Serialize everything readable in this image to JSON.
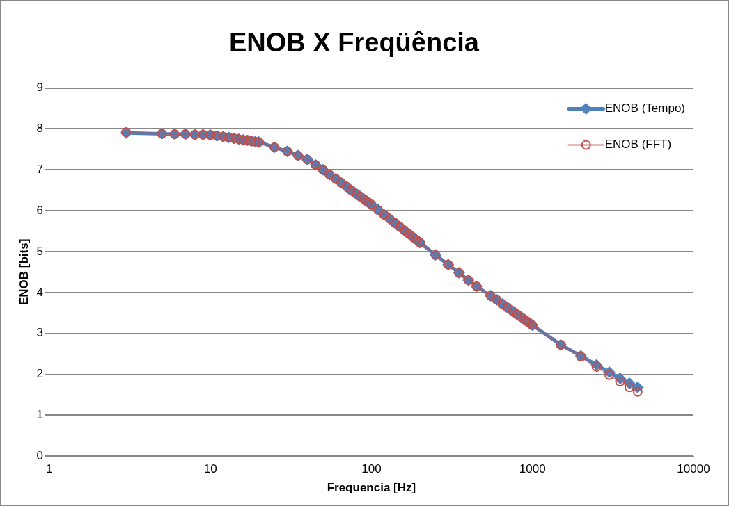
{
  "chart_data": {
    "type": "line",
    "title": "ENOB X Freqüência",
    "xlabel": "Frequencia [Hz]",
    "ylabel": "ENOB [bits]",
    "x": [
      3,
      5,
      6,
      7,
      8,
      9,
      10,
      11,
      12,
      13,
      14,
      15,
      16,
      17,
      18,
      19,
      20,
      25,
      30,
      35,
      40,
      45,
      50,
      55,
      60,
      65,
      70,
      75,
      80,
      85,
      90,
      95,
      100,
      110,
      120,
      130,
      140,
      150,
      160,
      170,
      180,
      190,
      200,
      250,
      300,
      350,
      400,
      450,
      550,
      600,
      650,
      700,
      750,
      800,
      850,
      900,
      950,
      1000,
      1500,
      2000,
      2500,
      3000,
      3500,
      4000,
      4500
    ],
    "series": [
      {
        "name": "ENOB (Tempo)",
        "color": "#4f81bd",
        "marker": "diamond",
        "values": [
          7.9,
          7.88,
          7.87,
          7.87,
          7.86,
          7.86,
          7.85,
          7.83,
          7.81,
          7.79,
          7.77,
          7.75,
          7.73,
          7.72,
          7.7,
          7.69,
          7.68,
          7.55,
          7.45,
          7.35,
          7.25,
          7.12,
          7.0,
          6.88,
          6.78,
          6.68,
          6.59,
          6.5,
          6.42,
          6.35,
          6.28,
          6.21,
          6.15,
          6.02,
          5.9,
          5.8,
          5.7,
          5.61,
          5.52,
          5.44,
          5.36,
          5.29,
          5.22,
          4.92,
          4.68,
          4.48,
          4.3,
          4.15,
          3.92,
          3.82,
          3.72,
          3.63,
          3.55,
          3.47,
          3.4,
          3.33,
          3.26,
          3.2,
          2.72,
          2.45,
          2.23,
          2.05,
          1.9,
          1.78,
          1.68
        ]
      },
      {
        "name": "ENOB (FFT)",
        "color": "#c0504d",
        "marker": "circle",
        "values": [
          7.92,
          7.88,
          7.87,
          7.87,
          7.86,
          7.86,
          7.85,
          7.83,
          7.81,
          7.79,
          7.77,
          7.75,
          7.73,
          7.72,
          7.7,
          7.69,
          7.68,
          7.55,
          7.45,
          7.35,
          7.25,
          7.12,
          7.0,
          6.88,
          6.78,
          6.68,
          6.59,
          6.5,
          6.42,
          6.35,
          6.28,
          6.21,
          6.15,
          6.02,
          5.9,
          5.8,
          5.7,
          5.61,
          5.52,
          5.44,
          5.36,
          5.29,
          5.22,
          4.92,
          4.68,
          4.48,
          4.3,
          4.15,
          3.92,
          3.82,
          3.72,
          3.63,
          3.55,
          3.47,
          3.4,
          3.33,
          3.26,
          3.2,
          2.72,
          2.43,
          2.18,
          1.98,
          1.82,
          1.68,
          1.57
        ]
      }
    ],
    "log": "x",
    "xlim": [
      1,
      10000
    ],
    "xticks": [
      1,
      10,
      100,
      1000,
      10000
    ],
    "ylim": [
      0,
      9
    ],
    "yticks": [
      0,
      1,
      2,
      3,
      4,
      5,
      6,
      7,
      8,
      9
    ],
    "grid": "y",
    "legend": "top right"
  }
}
